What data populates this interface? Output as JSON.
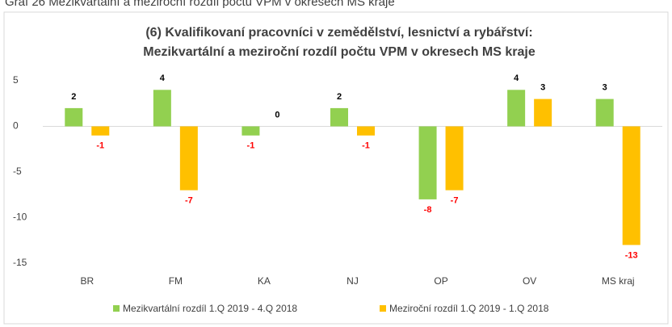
{
  "caption": "Graf 26 Mezikvartální a meziroční rozdíl počtu VPM v okresech MS kraje",
  "chart_data": {
    "type": "bar",
    "title": [
      "(6) Kvalifikovaní pracovníci v zemědělství, lesnictví a rybářství:",
      "Mezikvartální a meziroční rozdíl počtu VPM v okresech MS kraje"
    ],
    "categories": [
      "BR",
      "FM",
      "KA",
      "NJ",
      "OP",
      "OV",
      "MS kraj"
    ],
    "series": [
      {
        "name": "Mezikvartální rozdíl 1.Q 2019 - 4.Q 2018",
        "color": "#92d050",
        "values": [
          2,
          4,
          -1,
          2,
          -8,
          4,
          3
        ]
      },
      {
        "name": "Meziroční rozdíl 1.Q 2019 - 1.Q 2018",
        "color": "#ffc000",
        "values": [
          -1,
          -7,
          0,
          -1,
          -7,
          3,
          -13
        ]
      }
    ],
    "ylim": [
      -15,
      5
    ],
    "yticks": [
      -15,
      -10,
      -5,
      0,
      5
    ],
    "negative_label_color": "#ff0000",
    "legend": "bottom"
  }
}
